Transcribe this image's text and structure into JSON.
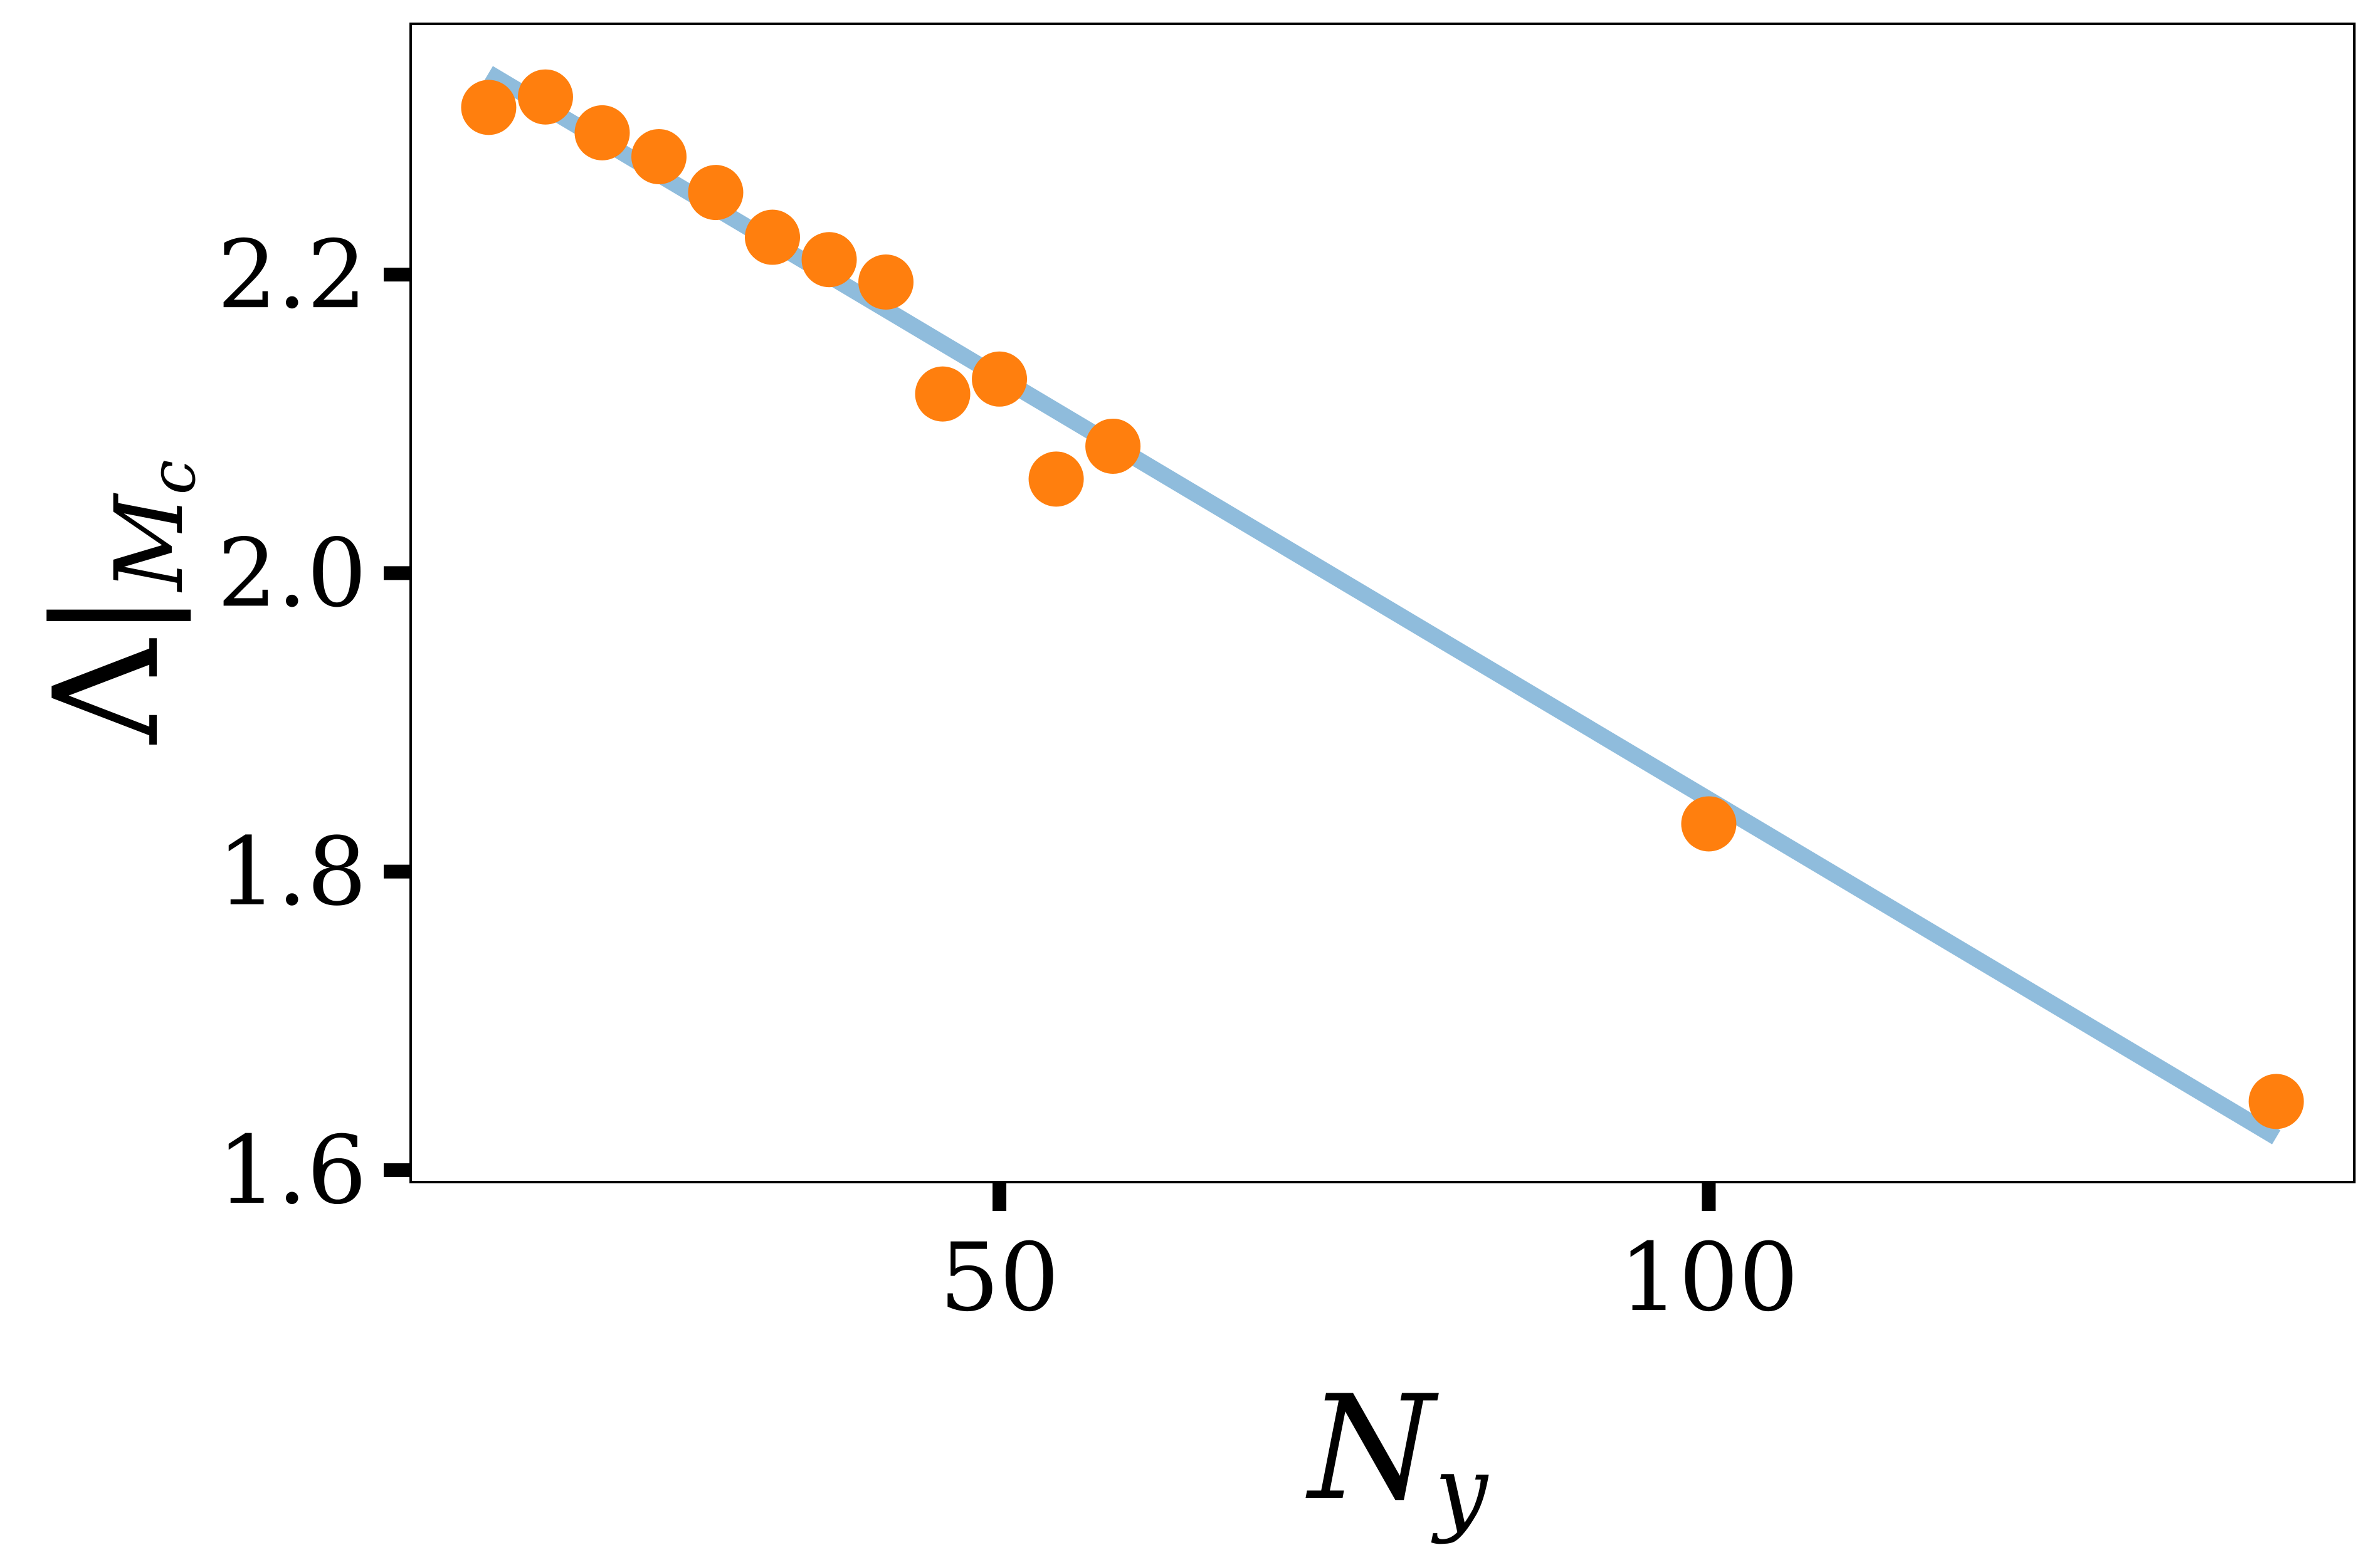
{
  "chart_data": {
    "type": "scatter",
    "title": "",
    "xlabel": {
      "main": "N",
      "sub": "y"
    },
    "ylabel": {
      "main": "Λ|",
      "sub": "M",
      "subsub": "c"
    },
    "xlim": [
      8.5,
      145.5
    ],
    "ylim": [
      1.592,
      2.368
    ],
    "xticks": [
      50,
      100
    ],
    "xtick_labels": [
      "50",
      "100"
    ],
    "yticks": [
      1.6,
      1.8,
      2.0,
      2.2
    ],
    "ytick_labels": [
      "1.6",
      "1.8",
      "2.0",
      "2.2"
    ],
    "grid": false,
    "legend": "none",
    "series": [
      {
        "kind": "points",
        "color": "#ff7f0e",
        "x": [
          14,
          18,
          22,
          26,
          30,
          34,
          38,
          42,
          46,
          50,
          54,
          58,
          100,
          140
        ],
        "y": [
          2.312,
          2.319,
          2.295,
          2.279,
          2.255,
          2.225,
          2.21,
          2.195,
          2.12,
          2.13,
          2.063,
          2.085,
          1.832,
          1.646
        ]
      },
      {
        "kind": "fit-line",
        "color": "#8fbcdc",
        "x": [
          14,
          140
        ],
        "y": [
          2.335,
          1.622
        ]
      }
    ]
  }
}
